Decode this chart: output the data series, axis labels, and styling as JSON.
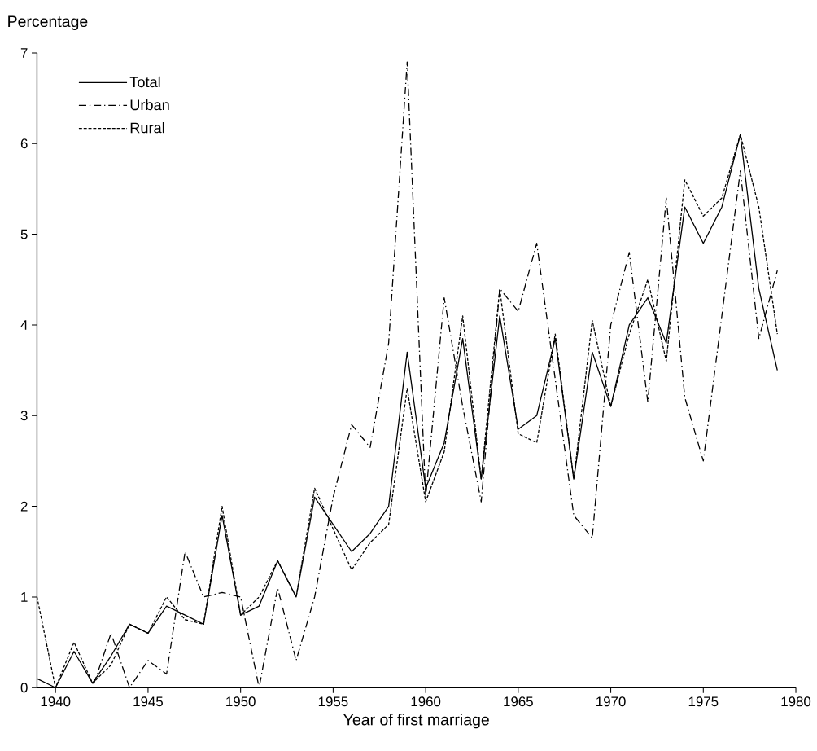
{
  "chart_data": {
    "type": "line",
    "xlabel": "Year of first marriage",
    "ylabel": "Percentage",
    "x": [
      1939,
      1940,
      1941,
      1942,
      1943,
      1944,
      1945,
      1946,
      1947,
      1948,
      1949,
      1950,
      1951,
      1952,
      1953,
      1954,
      1955,
      1956,
      1957,
      1958,
      1959,
      1960,
      1961,
      1962,
      1963,
      1964,
      1965,
      1966,
      1967,
      1968,
      1969,
      1970,
      1971,
      1972,
      1973,
      1974,
      1975,
      1976,
      1977,
      1978,
      1979
    ],
    "series": [
      {
        "name": "Total",
        "color": "#000000",
        "line_style": "solid",
        "values": [
          0.1,
          0,
          0.4,
          0.05,
          0.35,
          0.7,
          0.6,
          0.9,
          0.8,
          0.7,
          1.9,
          0.8,
          0.9,
          1.4,
          1.0,
          2.1,
          1.8,
          1.5,
          1.7,
          2.0,
          3.7,
          2.2,
          2.7,
          3.85,
          2.3,
          4.1,
          2.85,
          3.0,
          3.85,
          2.3,
          3.7,
          3.1,
          4.0,
          4.3,
          3.8,
          5.3,
          4.9,
          5.3,
          6.1,
          4.4,
          3.5
        ]
      },
      {
        "name": "Urban",
        "color": "#000000",
        "line_style": "dashdot",
        "values": [
          0,
          0,
          0,
          0,
          0.6,
          0,
          0.3,
          0.15,
          1.5,
          1.0,
          1.05,
          1.0,
          0,
          1.1,
          0.3,
          1.0,
          2.1,
          2.9,
          2.65,
          3.8,
          6.9,
          2.1,
          4.3,
          3.1,
          2.05,
          4.4,
          4.15,
          4.9,
          3.4,
          1.9,
          1.65,
          4.0,
          4.8,
          3.15,
          5.4,
          3.2,
          2.5,
          4.1,
          5.7,
          3.85,
          4.6
        ]
      },
      {
        "name": "Rural",
        "color": "#000000",
        "line_style": "dashed",
        "values": [
          1.0,
          0,
          0.5,
          0.05,
          0.25,
          0.7,
          0.6,
          1.0,
          0.75,
          0.7,
          2.0,
          0.8,
          1.0,
          1.4,
          1.0,
          2.2,
          1.75,
          1.3,
          1.6,
          1.8,
          3.3,
          2.05,
          2.6,
          4.1,
          2.3,
          4.4,
          2.8,
          2.7,
          3.9,
          2.3,
          4.05,
          3.1,
          3.9,
          4.5,
          3.6,
          5.6,
          5.2,
          5.4,
          6.1,
          5.3,
          3.9
        ]
      }
    ],
    "xlim": [
      1939,
      1980
    ],
    "ylim": [
      0,
      7
    ],
    "xticks": [
      1940,
      1945,
      1950,
      1955,
      1960,
      1965,
      1970,
      1975,
      1980
    ],
    "yticks": [
      0,
      1,
      2,
      3,
      4,
      5,
      6,
      7
    ],
    "grid": false,
    "legend": "top left"
  }
}
